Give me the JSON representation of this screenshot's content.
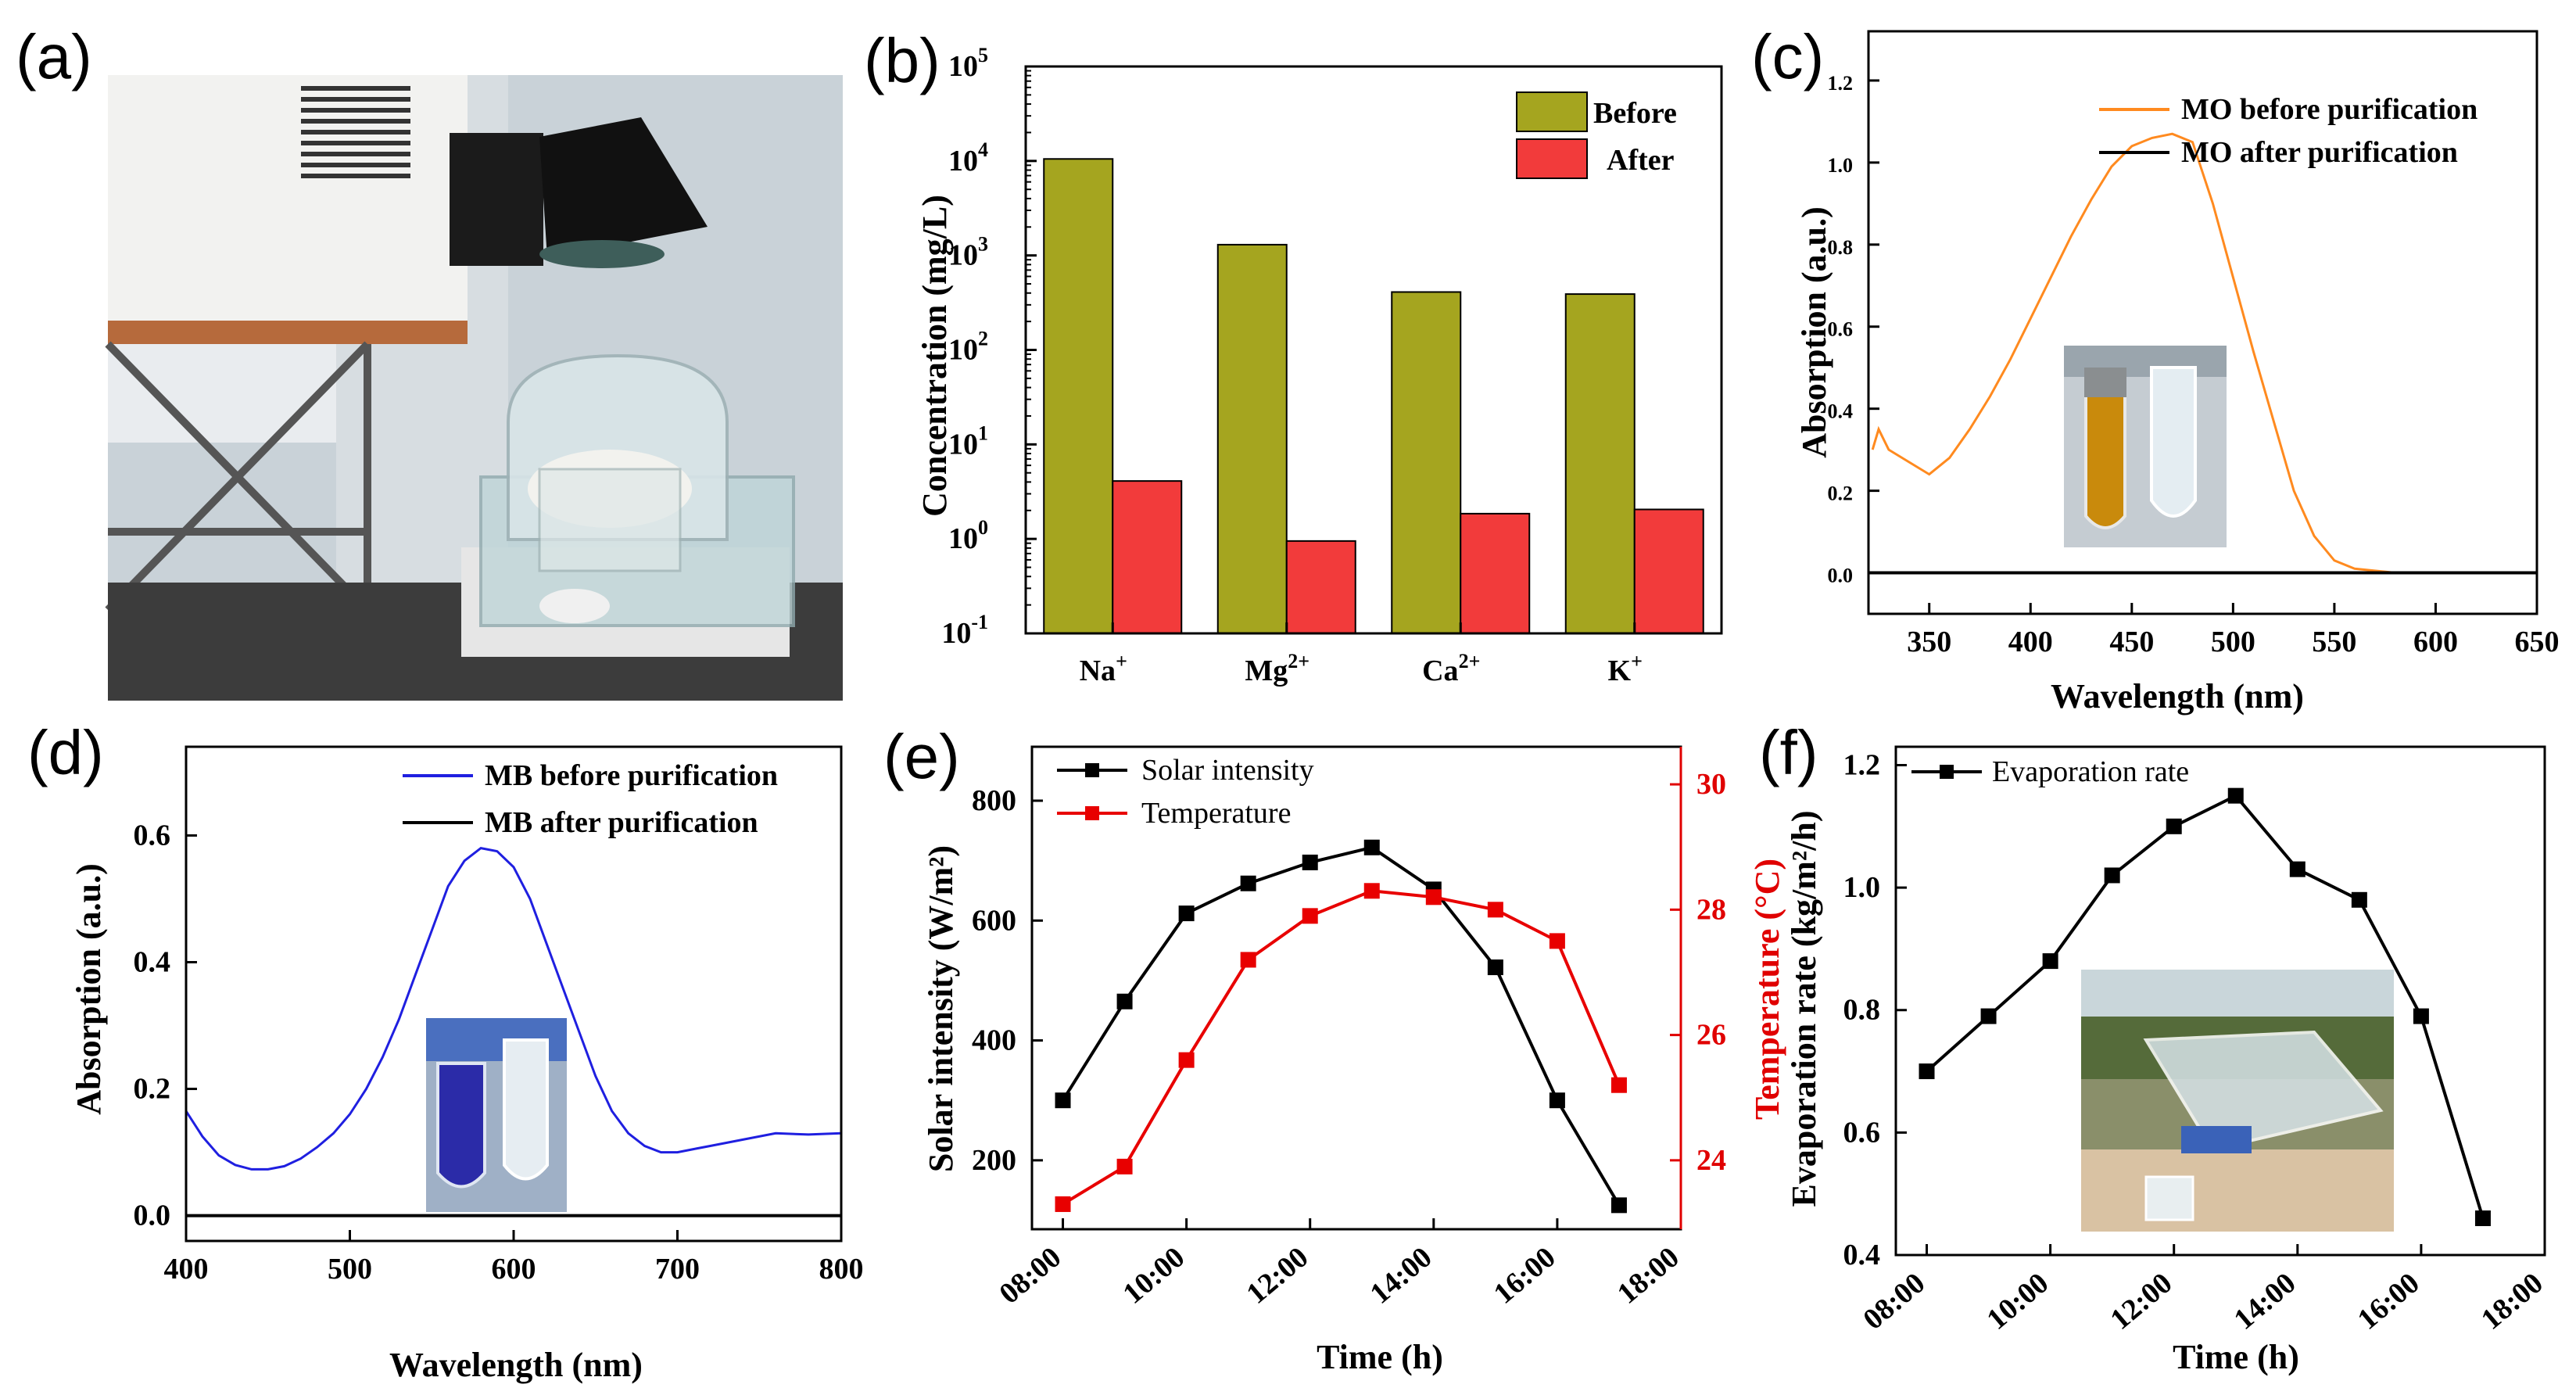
{
  "panels": {
    "a": "(a)",
    "b": "(b)",
    "c": "(c)",
    "d": "(d)",
    "e": "(e)",
    "f": "(f)"
  },
  "chart_data": [
    {
      "id": "b",
      "type": "bar",
      "yscale": "log",
      "ylabel": "Concentration (mg/L)",
      "xlabel": "",
      "categories": [
        {
          "base": "Na",
          "sup": "+"
        },
        {
          "base": "Mg",
          "sup": "2+"
        },
        {
          "base": "Ca",
          "sup": "2+"
        },
        {
          "base": "K",
          "sup": "+"
        }
      ],
      "series": [
        {
          "name": "Before",
          "color": "#a5a51f",
          "values": [
            10500,
            1300,
            410,
            390
          ]
        },
        {
          "name": "After",
          "color": "#f23b3b",
          "values": [
            4.1,
            0.95,
            1.85,
            2.05
          ]
        }
      ],
      "ylim": [
        0.1,
        100000
      ],
      "yticks": [
        {
          "base": "10",
          "exp": "-1"
        },
        {
          "base": "10",
          "exp": "0"
        },
        {
          "base": "10",
          "exp": "1"
        },
        {
          "base": "10",
          "exp": "2"
        },
        {
          "base": "10",
          "exp": "3"
        },
        {
          "base": "10",
          "exp": "4"
        },
        {
          "base": "10",
          "exp": "5"
        }
      ]
    },
    {
      "id": "c",
      "type": "line",
      "xlabel": "Wavelength (nm)",
      "ylabel": "Absorption (a.u.)",
      "xlim": [
        320,
        650
      ],
      "ylim": [
        -0.1,
        1.32
      ],
      "xticks": [
        "350",
        "400",
        "450",
        "500",
        "550",
        "600",
        "650"
      ],
      "yticks": [
        "0.0",
        "0.2",
        "0.4",
        "0.6",
        "0.8",
        "1.0",
        "1.2"
      ],
      "series": [
        {
          "name": "MO before purification",
          "color": "#ff8a1f",
          "x": [
            322,
            325,
            330,
            340,
            350,
            360,
            370,
            380,
            390,
            400,
            410,
            420,
            430,
            440,
            450,
            460,
            470,
            480,
            490,
            500,
            510,
            520,
            530,
            540,
            550,
            560,
            570,
            580,
            600,
            650
          ],
          "y": [
            0.3,
            0.35,
            0.3,
            0.27,
            0.24,
            0.28,
            0.35,
            0.43,
            0.52,
            0.62,
            0.72,
            0.82,
            0.91,
            0.99,
            1.04,
            1.06,
            1.07,
            1.05,
            0.9,
            0.72,
            0.54,
            0.37,
            0.2,
            0.09,
            0.03,
            0.01,
            0.005,
            0.0,
            0.0,
            0.0
          ]
        },
        {
          "name": "MO after purification",
          "color": "#000000",
          "x": [
            320,
            650
          ],
          "y": [
            0.0,
            0.0
          ]
        }
      ]
    },
    {
      "id": "d",
      "type": "line",
      "xlabel": "Wavelength (nm)",
      "ylabel": "Absorption (a.u.)",
      "xlim": [
        400,
        800
      ],
      "ylim": [
        -0.04,
        0.74
      ],
      "xticks": [
        "400",
        "500",
        "600",
        "700",
        "800"
      ],
      "yticks": [
        "0.0",
        "0.2",
        "0.4",
        "0.6"
      ],
      "series": [
        {
          "name": "MB before purification",
          "color": "#1f1fe0",
          "x": [
            400,
            410,
            420,
            430,
            440,
            450,
            460,
            470,
            480,
            490,
            500,
            510,
            520,
            530,
            540,
            550,
            560,
            570,
            580,
            590,
            600,
            610,
            620,
            630,
            640,
            650,
            660,
            670,
            680,
            690,
            700,
            710,
            720,
            740,
            760,
            780,
            800
          ],
          "y": [
            0.165,
            0.125,
            0.095,
            0.08,
            0.073,
            0.073,
            0.078,
            0.09,
            0.108,
            0.13,
            0.16,
            0.2,
            0.25,
            0.31,
            0.38,
            0.45,
            0.52,
            0.56,
            0.58,
            0.575,
            0.55,
            0.5,
            0.43,
            0.36,
            0.29,
            0.22,
            0.165,
            0.13,
            0.11,
            0.1,
            0.1,
            0.105,
            0.11,
            0.12,
            0.13,
            0.128,
            0.13
          ]
        },
        {
          "name": "MB after purification",
          "color": "#000000",
          "x": [
            400,
            800
          ],
          "y": [
            0.0,
            0.0
          ]
        }
      ]
    },
    {
      "id": "e",
      "type": "line",
      "xlabel": "Time (h)",
      "ylabel": "Solar intensity (W/m²)",
      "ylabel_right": "Temperature (°C)",
      "categories": [
        "08:00",
        "10:00",
        "12:00",
        "14:00",
        "16:00",
        "18:00"
      ],
      "xlim": [
        7.5,
        18
      ],
      "ylim": [
        85,
        890
      ],
      "ylim_right": [
        22.9,
        30.6
      ],
      "yticks": [
        "200",
        "400",
        "600",
        "800"
      ],
      "yticks_right": [
        "24",
        "26",
        "28",
        "30"
      ],
      "series": [
        {
          "name": "Solar intensity",
          "color": "#000000",
          "axis": "left",
          "x": [
            8,
            9,
            10,
            11,
            12,
            13,
            14,
            15,
            16,
            17
          ],
          "y": [
            300,
            465,
            612,
            662,
            697,
            722,
            652,
            522,
            300,
            125
          ]
        },
        {
          "name": "Temperature",
          "color": "#e80000",
          "axis": "right",
          "x": [
            8,
            9,
            10,
            11,
            12,
            13,
            14,
            15,
            16,
            17
          ],
          "y": [
            23.3,
            23.9,
            25.6,
            27.2,
            27.9,
            28.3,
            28.2,
            28.0,
            27.5,
            25.2
          ]
        }
      ]
    },
    {
      "id": "f",
      "type": "line",
      "xlabel": "Time (h)",
      "ylabel": "Evaporation rate (kg/m²/h)",
      "categories": [
        "08:00",
        "10:00",
        "12:00",
        "14:00",
        "16:00",
        "18:00"
      ],
      "xlim": [
        7.5,
        18
      ],
      "ylim": [
        0.4,
        1.23
      ],
      "yticks": [
        "0.4",
        "0.6",
        "0.8",
        "1.0",
        "1.2"
      ],
      "series": [
        {
          "name": "Evaporation rate",
          "color": "#000000",
          "x": [
            8,
            9,
            10,
            11,
            12,
            13,
            14,
            15,
            16,
            17
          ],
          "y": [
            0.7,
            0.79,
            0.88,
            1.02,
            1.1,
            1.15,
            1.03,
            0.98,
            0.79,
            0.46
          ]
        }
      ]
    }
  ]
}
